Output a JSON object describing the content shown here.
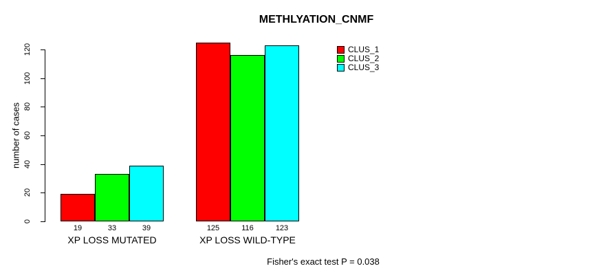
{
  "chart_data": {
    "type": "bar",
    "title": "METHLYATION_CNMF",
    "xlabel": "",
    "ylabel": "number of cases",
    "categories": [
      "XP LOSS MUTATED",
      "XP LOSS WILD-TYPE"
    ],
    "series": [
      {
        "name": "CLUS_1",
        "color": "#ff0000",
        "values": [
          19,
          125
        ]
      },
      {
        "name": "CLUS_2",
        "color": "#00ff00",
        "values": [
          33,
          116
        ]
      },
      {
        "name": "CLUS_3",
        "color": "#00ffff",
        "values": [
          39,
          123
        ]
      }
    ],
    "bar_value_labels": [
      [
        19,
        33,
        39
      ],
      [
        125,
        116,
        123
      ]
    ],
    "yticks": [
      0,
      20,
      40,
      60,
      80,
      100,
      120
    ],
    "ylim": [
      0,
      125
    ],
    "grid": false,
    "legend_position": "top-right",
    "bar_border_color": "#000000",
    "annotation": "Fisher's exact test P = 0.038"
  },
  "colors": {
    "background": "#ffffff",
    "axis": "#000000",
    "text": "#000000"
  }
}
